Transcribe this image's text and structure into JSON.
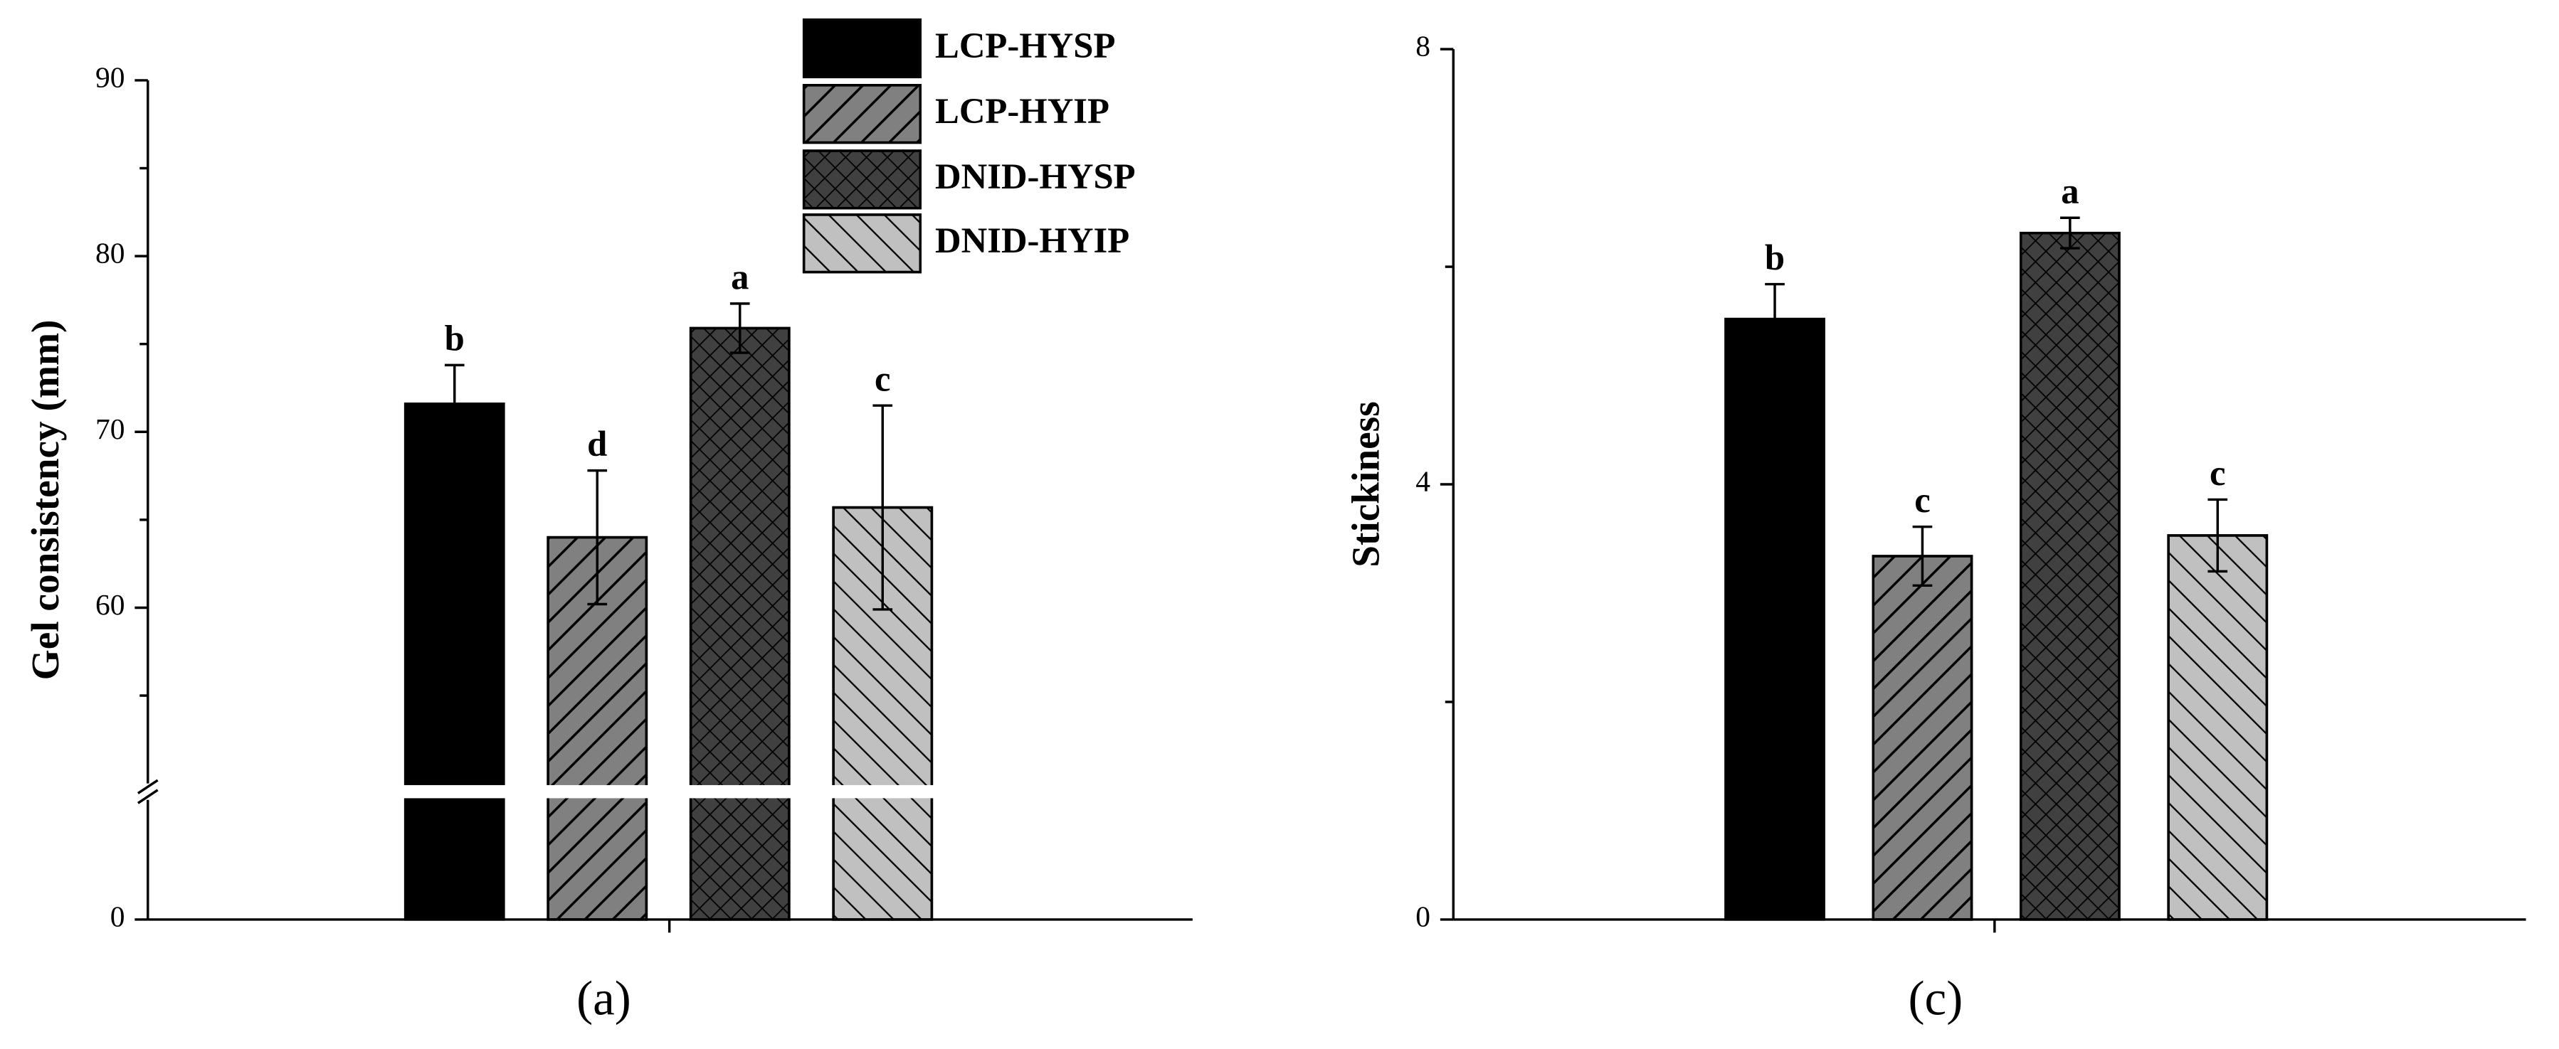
{
  "chart_data": [
    {
      "type": "bar",
      "caption": "(a)",
      "ylabel": "Gel consistency (mm)",
      "categories": [
        null
      ],
      "ylim": [
        0,
        90
      ],
      "ybreak": [
        10,
        50
      ],
      "yticks": [
        0,
        60,
        70,
        80,
        90
      ],
      "minor_yticks": [
        55,
        65,
        75,
        85
      ],
      "legend": "upper center",
      "series": [
        {
          "name": "LCP-HYSP",
          "color": "#000000",
          "pattern": "solid",
          "values": [
            71.6
          ],
          "errors": [
            2.2
          ],
          "letters": [
            "b"
          ]
        },
        {
          "name": "LCP-HYIP",
          "color": "#808080",
          "pattern": "forward-diagonal",
          "values": [
            64.0
          ],
          "errors": [
            3.8
          ],
          "letters": [
            "d"
          ]
        },
        {
          "name": "DNID-HYSP",
          "color": "#404040",
          "pattern": "crosshatch",
          "values": [
            75.9
          ],
          "errors": [
            1.4
          ],
          "letters": [
            "a"
          ]
        },
        {
          "name": "DNID-HYIP",
          "color": "#c0c0c0",
          "pattern": "back-diagonal",
          "values": [
            65.7
          ],
          "errors": [
            5.8
          ],
          "letters": [
            "c"
          ]
        }
      ]
    },
    {
      "type": "bar",
      "caption": "(c)",
      "ylabel": "Stickiness",
      "categories": [
        null
      ],
      "ylim": [
        0,
        8
      ],
      "yticks": [
        0,
        4,
        8
      ],
      "minor_yticks": [
        2,
        6
      ],
      "series": [
        {
          "color": "#000000",
          "pattern": "solid",
          "values": [
            5.52
          ],
          "errors": [
            0.32
          ],
          "letters": [
            "b"
          ]
        },
        {
          "color": "#808080",
          "pattern": "forward-diagonal",
          "values": [
            3.34
          ],
          "errors": [
            0.27
          ],
          "letters": [
            "c"
          ]
        },
        {
          "color": "#404040",
          "pattern": "crosshatch",
          "values": [
            6.31
          ],
          "errors": [
            0.14
          ],
          "letters": [
            "a"
          ]
        },
        {
          "color": "#c0c0c0",
          "pattern": "back-diagonal",
          "values": [
            3.53
          ],
          "errors": [
            0.33
          ],
          "letters": [
            "c"
          ]
        }
      ]
    }
  ]
}
